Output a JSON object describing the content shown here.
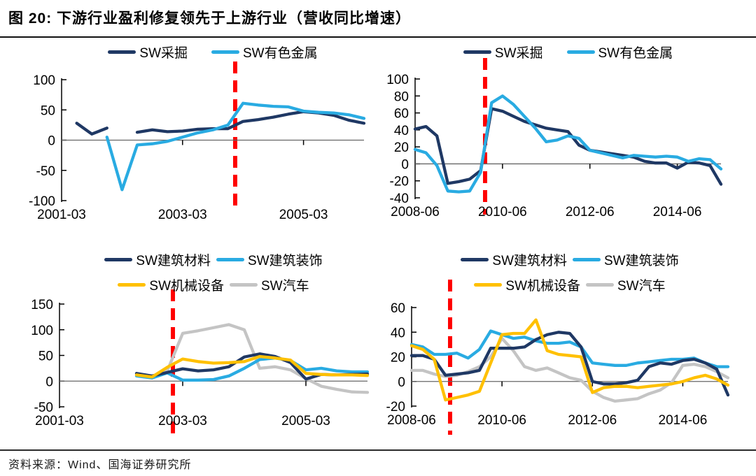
{
  "title": {
    "text": "图 20: 下游行业盈利修复领先于上游行业（营收同比增速）"
  },
  "source": {
    "text": "资料来源：Wind、国海证券研究所"
  },
  "colors": {
    "navy": "#1F3864",
    "cyan": "#29ABE2",
    "yellow": "#FFC000",
    "gray": "#C4C4C4",
    "red": "#FF0000",
    "axis": "#000000",
    "zero_line": "#666666"
  },
  "chart_data": [
    {
      "id": "top-left",
      "type": "line",
      "x_unit": "quarter",
      "n_points": 21,
      "x_ticks": [
        {
          "i": 0,
          "label": "2001-03"
        },
        {
          "i": 8,
          "label": "2003-03"
        },
        {
          "i": 16,
          "label": "2005-03"
        }
      ],
      "ylim": [
        -100,
        100
      ],
      "y_ticks": [
        100,
        50,
        0,
        -50,
        -100
      ],
      "marker_x_index": 11.5,
      "series": [
        {
          "name": "SW采掘",
          "color_key": "navy",
          "values": [
            null,
            28,
            10,
            20,
            null,
            13,
            17,
            14,
            15,
            18,
            19,
            19,
            31,
            34,
            38,
            43,
            47,
            45,
            41,
            33,
            28
          ]
        },
        {
          "name": "SW有色金属",
          "color_key": "cyan",
          "values": [
            null,
            null,
            null,
            5,
            -82,
            -8,
            -6,
            -2,
            5,
            12,
            17,
            25,
            61,
            58,
            56,
            55,
            48,
            46,
            45,
            42,
            36
          ]
        }
      ]
    },
    {
      "id": "top-right",
      "type": "line",
      "x_unit": "quarter",
      "n_points": 29,
      "x_ticks": [
        {
          "i": 0,
          "label": "2008-06"
        },
        {
          "i": 8,
          "label": "2010-06"
        },
        {
          "i": 16,
          "label": "2012-06"
        },
        {
          "i": 24,
          "label": "2014-06"
        }
      ],
      "ylim": [
        -40,
        100
      ],
      "y_ticks": [
        100,
        80,
        60,
        40,
        20,
        0,
        -20,
        -40
      ],
      "marker_x_index": 6.4,
      "series": [
        {
          "name": "SW采掘",
          "color_key": "navy",
          "values": [
            41,
            44,
            33,
            -23,
            -21,
            -18,
            -8,
            65,
            62,
            56,
            50,
            46,
            42,
            40,
            38,
            22,
            16,
            14,
            12,
            10,
            8,
            3,
            1,
            1,
            -5,
            2,
            1,
            -2,
            -24
          ]
        },
        {
          "name": "SW有色金属",
          "color_key": "cyan",
          "values": [
            17,
            13,
            -2,
            -32,
            -33,
            -32,
            -10,
            72,
            80,
            70,
            56,
            42,
            26,
            28,
            33,
            30,
            16,
            13,
            10,
            7,
            10,
            9,
            8,
            9,
            8,
            3,
            6,
            5,
            -6
          ]
        }
      ]
    },
    {
      "id": "bottom-left",
      "type": "line",
      "x_unit": "quarter",
      "n_points": 21,
      "x_ticks": [
        {
          "i": 0,
          "label": "2001-03"
        },
        {
          "i": 8,
          "label": "2003-03"
        },
        {
          "i": 16,
          "label": "2005-03"
        }
      ],
      "ylim": [
        -50,
        150
      ],
      "y_ticks": [
        150,
        100,
        50,
        0,
        -50
      ],
      "marker_x_index": 7.35,
      "series": [
        {
          "name": "SW建筑材料",
          "color_key": "navy",
          "values": [
            null,
            null,
            null,
            null,
            null,
            15,
            10,
            17,
            24,
            20,
            22,
            28,
            47,
            53,
            48,
            36,
            4,
            13,
            12,
            13,
            14
          ]
        },
        {
          "name": "SW建筑装饰",
          "color_key": "cyan",
          "values": [
            null,
            null,
            null,
            null,
            null,
            10,
            6,
            16,
            2,
            2,
            3,
            10,
            25,
            42,
            45,
            40,
            22,
            25,
            20,
            18,
            18
          ]
        },
        {
          "name": "SW机械设备",
          "color_key": "yellow",
          "values": [
            null,
            null,
            null,
            null,
            null,
            12,
            8,
            27,
            43,
            38,
            35,
            36,
            38,
            48,
            45,
            41,
            15,
            13,
            12,
            12,
            11
          ]
        },
        {
          "name": "SW汽车",
          "color_key": "gray",
          "values": [
            null,
            null,
            null,
            null,
            null,
            12,
            8,
            20,
            93,
            98,
            104,
            110,
            100,
            25,
            28,
            22,
            5,
            -10,
            -16,
            -21,
            -22
          ]
        }
      ]
    },
    {
      "id": "bottom-right",
      "type": "line",
      "x_unit": "quarter",
      "n_points": 29,
      "x_ticks": [
        {
          "i": 0,
          "label": "2008-06"
        },
        {
          "i": 8,
          "label": "2010-06"
        },
        {
          "i": 16,
          "label": "2012-06"
        },
        {
          "i": 24,
          "label": "2014-06"
        }
      ],
      "ylim": [
        -20,
        60
      ],
      "y_ticks": [
        60,
        40,
        20,
        0,
        -20
      ],
      "marker_x_index": 3.4,
      "series": [
        {
          "name": "SW建筑材料",
          "color_key": "navy",
          "values": [
            21,
            21,
            18,
            5,
            6,
            7,
            9,
            27,
            27,
            27,
            28,
            34,
            38,
            40,
            39,
            28,
            0,
            -2,
            -2,
            -1,
            1,
            12,
            15,
            14,
            17,
            18,
            15,
            10,
            -11
          ]
        },
        {
          "name": "SW建筑装饰",
          "color_key": "cyan",
          "values": [
            30,
            28,
            22,
            22,
            23,
            19,
            26,
            41,
            38,
            35,
            36,
            33,
            31,
            31,
            32,
            28,
            15,
            14,
            13,
            13,
            15,
            16,
            17,
            18,
            18,
            19,
            15,
            12,
            12
          ]
        },
        {
          "name": "SW机械设备",
          "color_key": "yellow",
          "values": [
            29,
            26,
            18,
            -15,
            -13,
            -11,
            -8,
            15,
            38,
            39,
            39,
            50,
            25,
            22,
            21,
            20,
            -9,
            -5,
            -4,
            -4,
            -5,
            -4,
            -3,
            -2,
            0,
            3,
            5,
            2,
            -3
          ]
        },
        {
          "name": "SW汽车",
          "color_key": "gray",
          "values": [
            9,
            9,
            6,
            4,
            5,
            8,
            12,
            20,
            35,
            25,
            12,
            9,
            11,
            7,
            3,
            1,
            -8,
            -13,
            -16,
            -15,
            -14,
            -10,
            -7,
            -1,
            13,
            14,
            12,
            8,
            3
          ]
        }
      ]
    }
  ]
}
